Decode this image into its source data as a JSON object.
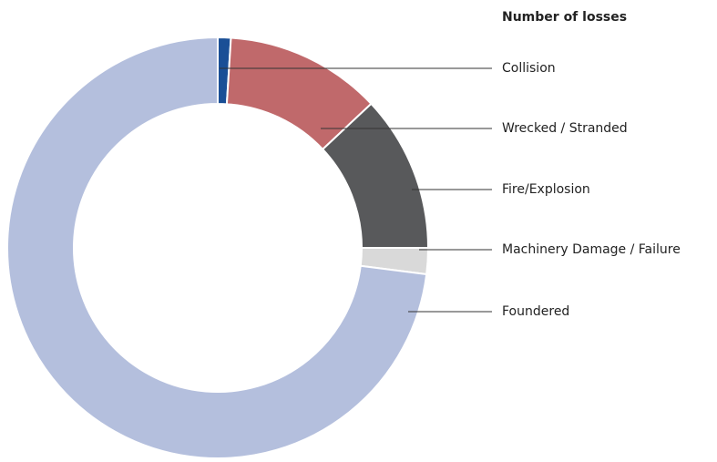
{
  "chart_data": {
    "type": "donut",
    "title": "Number of losses",
    "categories": [
      "Collision",
      "Wrecked / Stranded",
      "Fire/Explosion",
      "Machinery Damage / Failure",
      "Foundered"
    ],
    "values": [
      1,
      12,
      12,
      2,
      73
    ],
    "colors": [
      "#1a4f96",
      "#c0696b",
      "#58595b",
      "#d9d9d9",
      "#b4bfdd"
    ]
  }
}
